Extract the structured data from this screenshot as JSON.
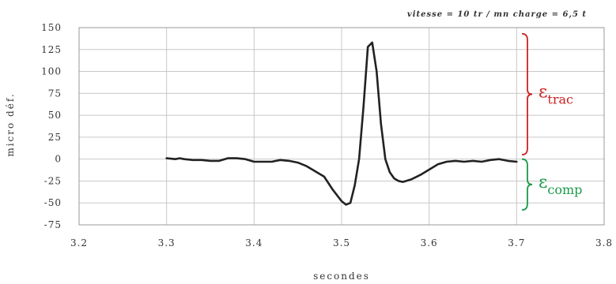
{
  "chart_data": {
    "type": "line",
    "title": "",
    "header_note": "vitesse = 10 tr / mn    charge = 6,5 t",
    "xlabel": "secondes",
    "ylabel": "micro déf.",
    "xlim": [
      3.2,
      3.8
    ],
    "ylim": [
      -75,
      150
    ],
    "x_ticks": [
      "3.2",
      "3.3",
      "3.4",
      "3.5",
      "3.6",
      "3.7",
      "3.8"
    ],
    "y_ticks": [
      "150",
      "125",
      "100",
      "75",
      "50",
      "25",
      "0",
      "-25",
      "-50",
      "-75"
    ],
    "grid": true,
    "series": [
      {
        "color": "#222222",
        "x": [
          3.3,
          3.31,
          3.315,
          3.32,
          3.33,
          3.34,
          3.35,
          3.36,
          3.37,
          3.38,
          3.39,
          3.4,
          3.41,
          3.42,
          3.43,
          3.44,
          3.45,
          3.46,
          3.47,
          3.48,
          3.49,
          3.5,
          3.505,
          3.51,
          3.515,
          3.52,
          3.525,
          3.53,
          3.535,
          3.54,
          3.545,
          3.55,
          3.555,
          3.56,
          3.565,
          3.57,
          3.58,
          3.59,
          3.6,
          3.61,
          3.62,
          3.63,
          3.64,
          3.65,
          3.66,
          3.67,
          3.68,
          3.69,
          3.7
        ],
        "y": [
          1,
          0,
          1,
          0,
          -1,
          -1,
          -2,
          -2,
          1,
          1,
          0,
          -3,
          -3,
          -3,
          -1,
          -2,
          -4,
          -8,
          -14,
          -20,
          -35,
          -48,
          -52,
          -50,
          -30,
          0,
          60,
          128,
          133,
          100,
          40,
          0,
          -15,
          -22,
          -25,
          -26,
          -23,
          -18,
          -12,
          -6,
          -3,
          -2,
          -3,
          -2,
          -3,
          -1,
          0,
          -2,
          -3
        ]
      }
    ],
    "annotations": [
      {
        "symbol": "ε",
        "subscript": "trac",
        "color": "#cc2222",
        "y_range": [
          5,
          143
        ]
      },
      {
        "symbol": "ε",
        "subscript": "comp",
        "color": "#1a9a4a",
        "y_range": [
          -58,
          0
        ]
      }
    ]
  }
}
